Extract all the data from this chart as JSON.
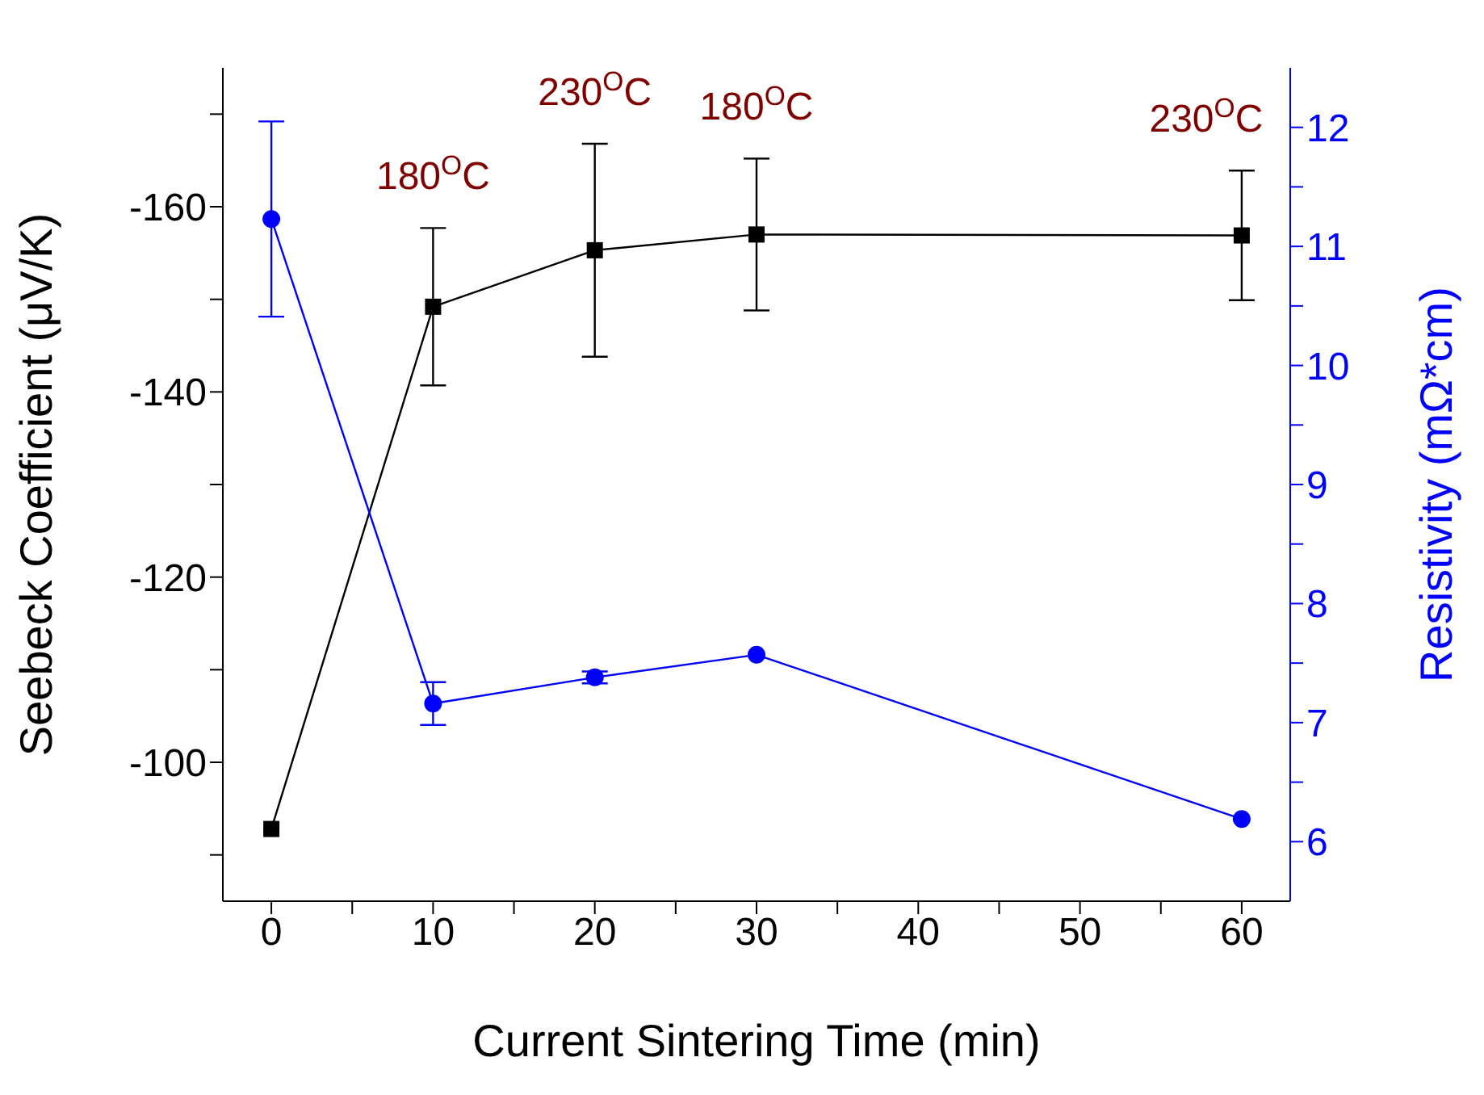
{
  "chart_data": {
    "type": "line",
    "xlabel": "Current Sintering Time (min)",
    "ylabel": "Seebeck Coefficient (μV/K)",
    "y2label": "Resistivity (mΩ*cm)",
    "x": [
      0,
      10,
      20,
      30,
      60
    ],
    "series": [
      {
        "color": "#000000",
        "marker": "square",
        "values": [
          -92.8,
          -149.2,
          -155.3,
          -157.0,
          -156.9
        ],
        "errors": [
          null,
          8.5,
          11.5,
          8.2,
          7
        ]
      },
      {
        "color": "#0000ff",
        "marker": "circle",
        "axis": "y2",
        "values": [
          11.23,
          7.16,
          7.38,
          7.57,
          6.19
        ],
        "errors": [
          0.82,
          0.18,
          0.05,
          null,
          null
        ]
      }
    ],
    "xlim": [
      -3,
      63
    ],
    "xticks": [
      0,
      {
        "value": 5,
        "label": null
      },
      10,
      {
        "value": 15,
        "label": null
      },
      20,
      {
        "value": 25,
        "label": null
      },
      30,
      {
        "value": 35,
        "label": null
      },
      40,
      {
        "value": 45,
        "label": null
      },
      50,
      {
        "value": 55,
        "label": null
      },
      60
    ],
    "ylim": [
      -85,
      -175
    ],
    "yticks": [
      {
        "value": -170,
        "label": null
      },
      -160,
      {
        "value": -150,
        "label": null
      },
      -140,
      {
        "value": -130,
        "label": null
      },
      -120,
      {
        "value": -110,
        "label": null
      },
      -100,
      {
        "value": -90,
        "label": null
      }
    ],
    "y2lim": [
      5.5,
      12.5
    ],
    "y2ticks": [
      6,
      {
        "value": 6.5,
        "label": null
      },
      7,
      {
        "value": 7.5,
        "label": null
      },
      8,
      {
        "value": 8.5,
        "label": null
      },
      9,
      {
        "value": 9.5,
        "label": null
      },
      10,
      {
        "value": 10.5,
        "label": null
      },
      11,
      {
        "value": 11.5,
        "label": null
      },
      12
    ],
    "annotations": [
      "180$^{O}$C",
      "230$^{O}$C",
      "180$^{O}$C",
      "230$^{O}$C"
    ],
    "grid": false,
    "legend": false
  }
}
